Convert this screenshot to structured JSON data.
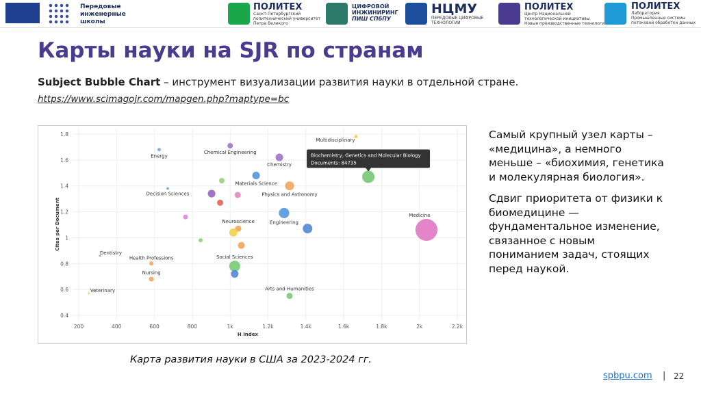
{
  "header": {
    "logos": [
      {
        "lines": [
          "Передовые",
          "инженерные",
          "школы"
        ]
      },
      {
        "title": "ПОЛИТЕХ",
        "lines": [
          "Санкт-Петербургский",
          "политехнический университет",
          "Петра Великого"
        ]
      },
      {
        "title": "ЦИФРОВОЙ ИНЖИНИРИНГ",
        "lines": [
          "ПИШ СПбПУ"
        ]
      },
      {
        "title": "НЦМУ",
        "lines": [
          "ПЕРЕДОВЫЕ ЦИФРОВЫЕ",
          "ТЕХНОЛОГИИ"
        ]
      },
      {
        "title": "ПОЛИТЕХ",
        "lines": [
          "Центр Национальной",
          "технологической инициативы",
          "Новые производственные технологии"
        ]
      },
      {
        "title": "ПОЛИТЕХ",
        "lines": [
          "Лаборатория",
          "Промышленные системы",
          "потоковой обработки данных"
        ]
      }
    ]
  },
  "title": "Карты науки на SJR по странам",
  "subtitle": {
    "bold": "Subject Bubble Chart",
    "rest": " – инструмент визуализации развития науки в отдельной стране."
  },
  "link": "https://www.scimagojr.com/mapgen.php?maptype=bc",
  "chart_data": {
    "type": "bubble",
    "x_label": "H Index",
    "y_label": "Cites per Document",
    "labels": [
      "Energy",
      "Chemical Engineering",
      "Multidisciplinary",
      "Chemistry",
      null,
      "Materials Science",
      null,
      "Physics and Astronomy",
      "Decision Sciences",
      null,
      null,
      null,
      null,
      "Engineering",
      "Neuroscience",
      null,
      "Medicine",
      null,
      null,
      null,
      "Dentistry",
      "Health Professions",
      "Social Sciences",
      null,
      "Nursing",
      "Veterinary",
      "Arts and Humanities"
    ],
    "x": [
      625,
      1000,
      1665,
      1260,
      1730,
      1137,
      956,
      1314,
      670,
      902,
      1040,
      947,
      764,
      1285,
      1043,
      1409,
      2037,
      1017,
      844,
      1059,
      312,
      584,
      1024,
      1024,
      584,
      254,
      1314
    ],
    "y": [
      1.68,
      1.71,
      1.78,
      1.62,
      1.47,
      1.48,
      1.44,
      1.4,
      1.38,
      1.34,
      1.33,
      1.27,
      1.16,
      1.19,
      1.07,
      1.07,
      1.06,
      1.04,
      0.98,
      0.94,
      0.86,
      0.8,
      0.78,
      0.72,
      0.68,
      0.57,
      0.55
    ],
    "sizes": [
      6500,
      16800,
      6500,
      31700,
      84735,
      31700,
      16800,
      44000,
      4200,
      31700,
      21000,
      21000,
      12800,
      59000,
      21000,
      51000,
      268000,
      37700,
      9400,
      26000,
      2400,
      9400,
      67000,
      31700,
      12800,
      2400,
      21000
    ],
    "colors": [
      "#6fa8dc",
      "#9a6cc4",
      "#f0d040",
      "#9a6cc4",
      "#6cc46c",
      "#4a90d9",
      "#90d070",
      "#f0a050",
      "#6fa8dc",
      "#8e5cb8",
      "#e080c0",
      "#e05a4a",
      "#e080d0",
      "#4a90d9",
      "#f0a050",
      "#4a80d0",
      "#e070c0",
      "#f0d040",
      "#80d070",
      "#f0a050",
      "#60c060",
      "#f0a050",
      "#70c870",
      "#4a80d0",
      "#f0a050",
      "#f0d040",
      "#70c870"
    ],
    "xlim": [
      200,
      2200
    ],
    "xticks": [
      200,
      400,
      600,
      800,
      {
        "value": 1000,
        "label": "1k"
      },
      {
        "value": 1200,
        "label": "1.2k"
      },
      {
        "value": 1400,
        "label": "1.4k"
      },
      {
        "value": 1600,
        "label": "1.6k"
      },
      {
        "value": 1800,
        "label": "1.8k"
      },
      {
        "value": 2000,
        "label": "2k"
      },
      {
        "value": 2200,
        "label": "2.2k"
      }
    ],
    "ylim": [
      0.4,
      1.8
    ],
    "yticks": [
      0.4,
      0.6,
      0.8,
      1,
      1.2,
      1.4,
      1.6,
      1.8
    ],
    "grid": true,
    "tooltip": {
      "index": 4,
      "title": "Biochemistry, Genetics and Molecular Biology",
      "text": "Documents: 84735"
    }
  },
  "caption": "Карта развития науки в США за 2023-2024 гг.",
  "notes": [
    "Самый крупный узел карты – «медицина», а немного меньше – «биохимия, генетика и молекулярная биология».",
    "Сдвиг приоритета от физики к биомедицине — фундаментальное изменение, связанное с новым пониманием задач, стоящих перед наукой."
  ],
  "footer": {
    "site": "spbpu.com",
    "separator": "|",
    "page": "22"
  }
}
